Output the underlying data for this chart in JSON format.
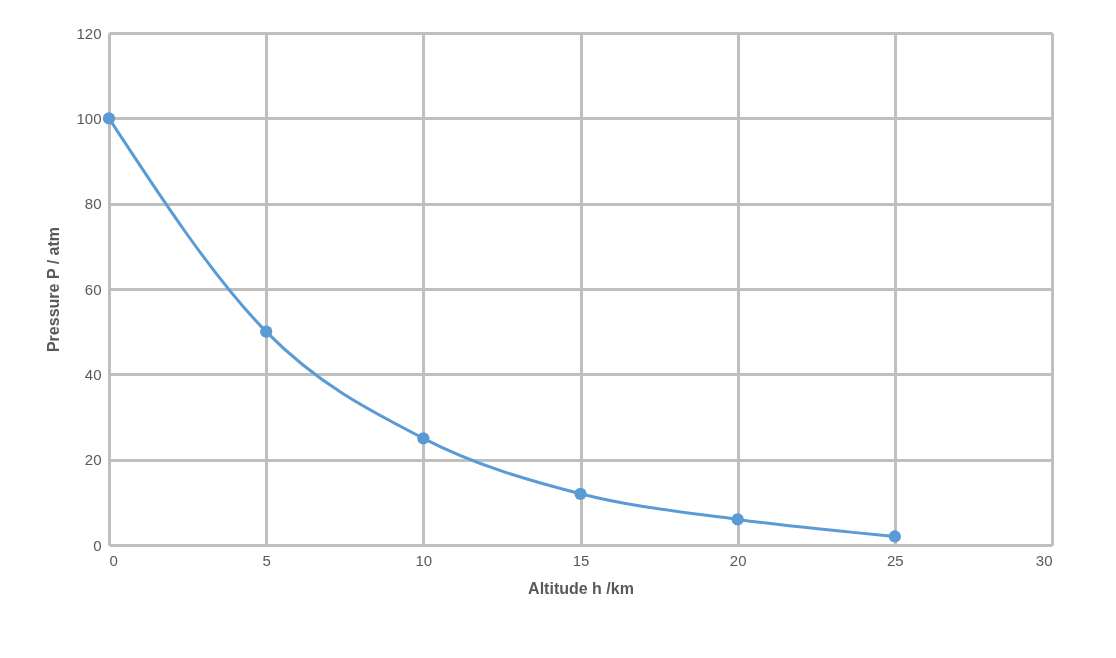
{
  "chart_data": {
    "type": "line",
    "xlabel": "Altitude h /km",
    "ylabel": "Pressure P / atm",
    "x": [
      0,
      5,
      10,
      15,
      20,
      25
    ],
    "series": [
      {
        "color": "#5b9bd5",
        "values": [
          100,
          50,
          25,
          12,
          6,
          2
        ]
      }
    ],
    "xlim": [
      0,
      30
    ],
    "xticks": [
      0,
      5,
      10,
      15,
      20,
      25,
      30
    ],
    "ylim": [
      0,
      120
    ],
    "yticks": [
      0,
      20,
      40,
      60,
      80,
      100,
      120
    ],
    "grid": true,
    "marker": "circle",
    "line_style": "solid"
  }
}
